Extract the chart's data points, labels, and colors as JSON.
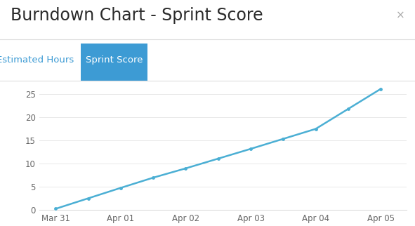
{
  "title": "Burndown Chart - Sprint Score",
  "close_btn": "×",
  "tab1_label": "Estimated Hours",
  "tab2_label": "Sprint Score",
  "x_labels": [
    "Mar 31",
    "Apr 01",
    "Apr 02",
    "Apr 03",
    "Apr 04",
    "Apr 05"
  ],
  "x_values": [
    0,
    1,
    2,
    3,
    4,
    5
  ],
  "x_data": [
    0,
    0.5,
    1.0,
    1.5,
    2.0,
    2.5,
    3.0,
    3.5,
    4.0,
    4.5,
    5.0
  ],
  "y_data": [
    0.3,
    2.55,
    4.8,
    7.0,
    9.0,
    11.1,
    13.2,
    15.35,
    17.5,
    21.8,
    26.1
  ],
  "markers_x": [
    0,
    0.5,
    1.0,
    1.5,
    2.0,
    2.5,
    3.0,
    3.5,
    4.0,
    4.5,
    5.0
  ],
  "markers_y": [
    0.3,
    2.55,
    4.8,
    7.0,
    9.0,
    11.1,
    13.2,
    15.35,
    17.5,
    21.8,
    26.1
  ],
  "line_color": "#4bafd4",
  "marker_color": "#4bafd4",
  "background_color": "#ffffff",
  "title_color": "#2a2a2a",
  "close_color": "#aaaaaa",
  "tab_active_bg": "#3d9bd4",
  "tab_active_fg": "#ffffff",
  "tab_inactive_fg": "#3d9bd4",
  "separator_color": "#dddddd",
  "ylim": [
    0,
    27
  ],
  "yticks": [
    0,
    5,
    10,
    15,
    20,
    25
  ],
  "tick_color": "#666666",
  "grid_color": "#e8e8e8",
  "title_fontsize": 17,
  "axis_fontsize": 8.5,
  "tab_fontsize": 9.5
}
